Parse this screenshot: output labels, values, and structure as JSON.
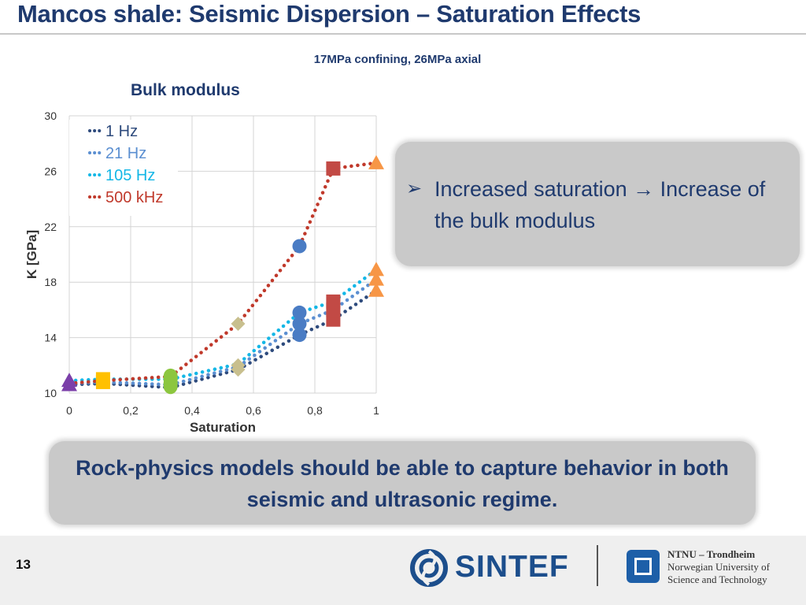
{
  "slide": {
    "title": "Mancos shale: Seismic Dispersion – Saturation Effects",
    "subtitle": "17MPa confining, 26MPa axial",
    "chart_heading": "Bulk modulus",
    "callout": "Increased saturation → Increase of the bulk modulus",
    "bullet_glyph": "➢",
    "note": "Rock-physics models should be able to capture behavior in both seismic and ultrasonic regime.",
    "page_number": "13"
  },
  "footer": {
    "sintef_label": "SINTEF",
    "ntnu_line1": "NTNU – Trondheim",
    "ntnu_line2": "Norwegian University of",
    "ntnu_line3": "Science and Technology"
  },
  "colors": {
    "title": "#1f3a6e",
    "1 Hz": "#2e4b7d",
    "21 Hz": "#5b8fd1",
    "105 Hz": "#14b7e6",
    "500 kHz": "#c0392b",
    "purple": "#7b3fa9",
    "yellow": "#ffc000",
    "green": "#8cc63f",
    "khaki": "#c8bf8e",
    "blue": "#4a7cc4",
    "red": "#c24a45",
    "orange": "#f79646"
  },
  "chart_data": {
    "type": "scatter",
    "xlabel": "Saturation",
    "ylabel": "K [GPa]",
    "xlim": [
      0,
      1
    ],
    "ylim": [
      10,
      30
    ],
    "xticks": [
      "0",
      "0,2",
      "0,4",
      "0,6",
      "0,8",
      "1"
    ],
    "yticks": [
      "10",
      "14",
      "18",
      "22",
      "26",
      "30"
    ],
    "grid": true,
    "legend_position": "top-left",
    "series": [
      {
        "name": "1 Hz",
        "x": [
          0,
          0.11,
          0.33,
          0.55,
          0.75,
          0.86,
          1.0
        ],
        "y": [
          10.6,
          10.7,
          10.4,
          11.7,
          14.2,
          15.3,
          17.4
        ]
      },
      {
        "name": "21 Hz",
        "x": [
          0,
          0.11,
          0.33,
          0.55,
          0.75,
          0.86,
          1.0
        ],
        "y": [
          10.7,
          10.8,
          10.6,
          11.9,
          15.0,
          16.0,
          18.2
        ]
      },
      {
        "name": "105 Hz",
        "x": [
          0,
          0.11,
          0.33,
          0.55,
          0.75,
          0.86,
          1.0
        ],
        "y": [
          10.9,
          11.0,
          11.0,
          12.1,
          15.8,
          16.6,
          18.9
        ]
      },
      {
        "name": "500 kHz",
        "x": [
          0,
          0.11,
          0.33,
          0.55,
          0.75,
          0.86,
          1.0
        ],
        "y": [
          10.7,
          10.9,
          11.2,
          15.0,
          20.6,
          26.2,
          26.6
        ]
      }
    ],
    "markers": [
      {
        "shape": "triangle",
        "color": "purple",
        "x": 0,
        "y": [
          10.6,
          10.9
        ]
      },
      {
        "shape": "square",
        "color": "yellow",
        "x": 0.11,
        "y": [
          10.8,
          11.0
        ]
      },
      {
        "shape": "ellipse",
        "color": "green",
        "x": 0.33,
        "y": [
          10.5,
          10.7,
          11.0,
          11.2
        ]
      },
      {
        "shape": "diamond",
        "color": "khaki",
        "x": 0.55,
        "y": [
          11.7,
          12.0,
          15.0
        ]
      },
      {
        "shape": "circle",
        "color": "blue",
        "x": 0.75,
        "y": [
          14.2,
          15.0,
          15.8,
          20.6
        ]
      },
      {
        "shape": "square",
        "color": "red",
        "x": 0.86,
        "y": [
          15.3,
          16.0,
          16.6,
          26.2
        ]
      },
      {
        "shape": "triangle",
        "color": "orange",
        "x": 1.0,
        "y": [
          17.4,
          18.2,
          18.9,
          26.6
        ]
      }
    ]
  }
}
